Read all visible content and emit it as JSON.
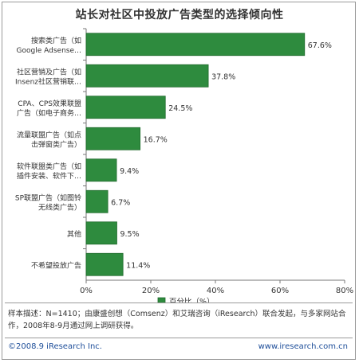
{
  "chart_data": {
    "type": "bar",
    "title": "站长对社区中投放广告类型的选择倾向性",
    "categories": [
      [
        "搜索类广告（如",
        "Google Adsense…"
      ],
      [
        "社区营销及广告（如",
        "Insenz社区营销联…"
      ],
      [
        "CPA、CPS效果联盟",
        "广告（如电子商务…"
      ],
      [
        "流量联盟广告（如点",
        "击弹窗类广告）"
      ],
      [
        "软件联盟类广告（如",
        "插件安装、软件下…"
      ],
      [
        "SP联盟广告（如图铃",
        "无线类广告）"
      ],
      [
        "其他"
      ],
      [
        "不希望投放广告"
      ]
    ],
    "series": [
      {
        "name": "百分比（%）",
        "values": [
          67.6,
          37.8,
          24.5,
          16.7,
          9.4,
          6.7,
          9.5,
          11.4
        ]
      }
    ],
    "value_labels": [
      "67.6%",
      "37.8%",
      "24.5%",
      "16.7%",
      "9.4%",
      "6.7%",
      "9.5%",
      "11.4%"
    ],
    "xlim": [
      0,
      80
    ],
    "xticks": [
      "0%",
      "20%",
      "40%",
      "60%",
      "80%"
    ],
    "grid": false,
    "legend_position": "bottom-right",
    "bar_color": "#2e8b3e"
  },
  "note": "样本描述：N=1410；由康盛创想（Comsenz）和艾瑞咨询（iResearch）联合发起，与多家网站合作，2008年8-9月通过网上调研获得。",
  "footer": {
    "copyright": "©2008.9 iResearch Inc.",
    "website": "www.iresearch.com.cn"
  }
}
